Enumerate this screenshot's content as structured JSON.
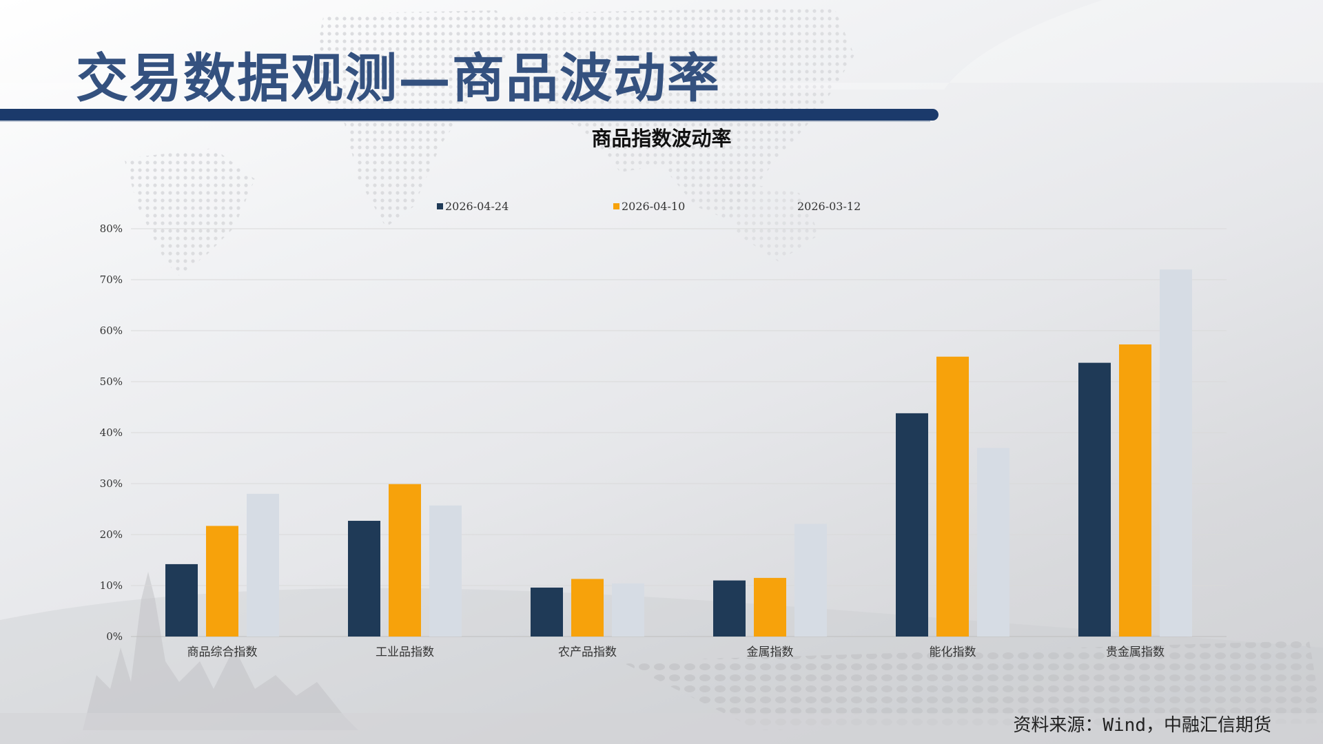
{
  "slide": {
    "title": "交易数据观测—商品波动率",
    "source": "资料来源：Wind，中融汇信期货"
  },
  "colors": {
    "title": "#34517f",
    "rule": "#1b3a6b",
    "series_1": "#1f3a57",
    "series_2": "#f7a20b",
    "series_3": "#d6dce4"
  },
  "chart_data": {
    "type": "bar",
    "title": "商品指数波动率",
    "xlabel": "",
    "ylabel": "",
    "ylim": [
      0,
      80
    ],
    "y_ticks": [
      0,
      10,
      20,
      30,
      40,
      50,
      60,
      70,
      80
    ],
    "y_tick_format": "percent",
    "grid": true,
    "legend": "top-center",
    "categories": [
      "商品综合指数",
      "工业品指数",
      "农产品指数",
      "金属指数",
      "能化指数",
      "贵金属指数"
    ],
    "series": [
      {
        "name": "2026-04-24",
        "color": "#1f3a57",
        "values": [
          14.2,
          22.7,
          9.6,
          11.0,
          43.8,
          53.7
        ]
      },
      {
        "name": "2026-04-10",
        "color": "#f7a20b",
        "values": [
          21.7,
          29.9,
          11.3,
          11.5,
          54.9,
          57.3
        ]
      },
      {
        "name": "2026-03-12",
        "color": "#d6dce4",
        "values": [
          28.0,
          25.7,
          10.4,
          22.1,
          37.0,
          72.0
        ]
      }
    ]
  }
}
